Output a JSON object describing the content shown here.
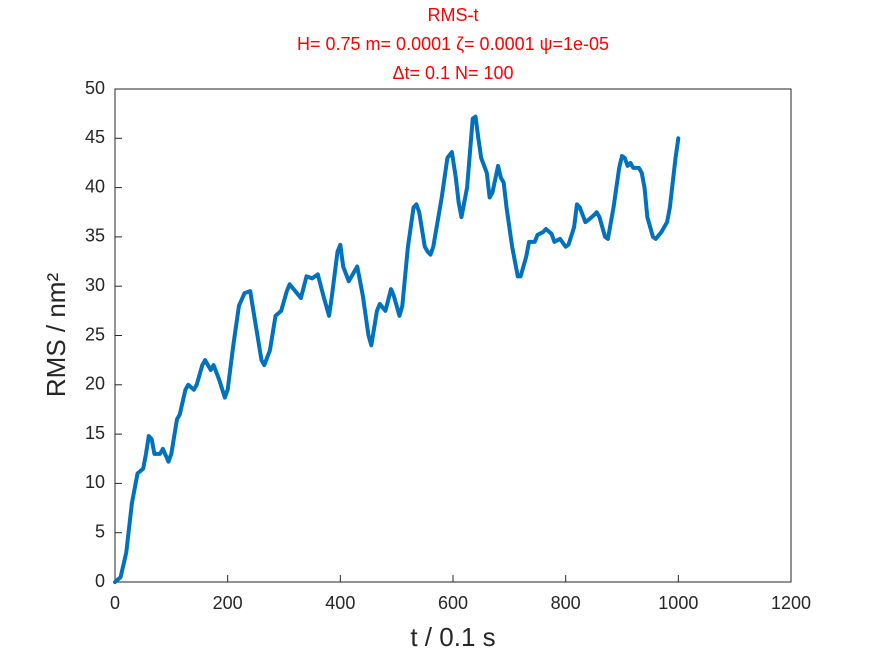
{
  "chart_data": {
    "type": "line",
    "title": [
      "RMS-t",
      "H= 0.75 m= 0.0001 ζ= 0.0001 ψ=1e-05",
      "Δt= 0.1 N= 100"
    ],
    "xlabel": "t / 0.1 s",
    "ylabel": "RMS / nm²",
    "xlim": [
      0,
      1200
    ],
    "ylim": [
      0,
      50
    ],
    "xticks": [
      0,
      200,
      400,
      600,
      800,
      1000,
      1200
    ],
    "yticks": [
      0,
      5,
      10,
      15,
      20,
      25,
      30,
      35,
      40,
      45,
      50
    ],
    "title_color": "#ff0000",
    "series": [
      {
        "name": "RMS",
        "color": "#0072bd",
        "x": [
          0,
          10,
          20,
          30,
          40,
          50,
          55,
          60,
          65,
          70,
          80,
          85,
          95,
          100,
          110,
          115,
          125,
          130,
          140,
          145,
          155,
          160,
          170,
          175,
          185,
          195,
          200,
          210,
          220,
          230,
          240,
          250,
          260,
          265,
          275,
          285,
          295,
          305,
          310,
          320,
          330,
          340,
          350,
          360,
          370,
          380,
          385,
          395,
          400,
          405,
          415,
          420,
          430,
          440,
          450,
          455,
          465,
          470,
          480,
          490,
          495,
          505,
          510,
          520,
          530,
          535,
          540,
          550,
          555,
          560,
          565,
          580,
          590,
          598,
          605,
          610,
          615,
          625,
          635,
          640,
          645,
          650,
          660,
          665,
          670,
          680,
          685,
          690,
          695,
          705,
          715,
          720,
          730,
          735,
          745,
          750,
          760,
          765,
          775,
          780,
          790,
          800,
          805,
          815,
          820,
          825,
          835,
          840,
          850,
          855,
          860,
          870,
          875,
          885,
          895,
          900,
          905,
          910,
          915,
          920,
          930,
          935,
          940,
          945,
          955,
          960,
          970,
          980,
          985,
          995,
          1000
        ],
        "values": [
          0,
          0.5,
          3,
          8,
          11,
          11.5,
          13,
          14.8,
          14.5,
          13,
          13,
          13.5,
          12.2,
          13,
          16.5,
          17,
          19.5,
          20,
          19.5,
          20,
          22,
          22.5,
          21.5,
          22,
          20.5,
          18.7,
          19.5,
          24,
          28,
          29.3,
          29.5,
          26,
          22.5,
          22,
          23.5,
          27,
          27.5,
          29.5,
          30.2,
          29.5,
          28.8,
          31,
          30.8,
          31.2,
          29,
          27,
          29,
          33.5,
          34.2,
          32,
          30.5,
          31,
          32,
          29,
          25,
          24,
          27.5,
          28.2,
          27.5,
          29.7,
          29,
          27,
          28,
          34,
          38,
          38.3,
          37.5,
          34,
          33.5,
          33.2,
          34,
          39,
          43,
          43.6,
          41,
          38.5,
          37,
          40,
          47,
          47.2,
          45,
          43,
          41.5,
          39,
          39.5,
          42.2,
          41,
          40.5,
          38,
          34,
          31,
          31,
          33,
          34.5,
          34.5,
          35.2,
          35.5,
          35.8,
          35.3,
          34.5,
          34.8,
          34,
          34.2,
          36,
          38.3,
          38,
          36.5,
          36.7,
          37.2,
          37.5,
          37,
          35,
          34.8,
          38,
          42,
          43.2,
          43,
          42.2,
          42.5,
          42,
          42,
          41.5,
          40,
          37,
          35,
          34.8,
          35.5,
          36.5,
          38,
          43,
          45
        ]
      }
    ]
  }
}
